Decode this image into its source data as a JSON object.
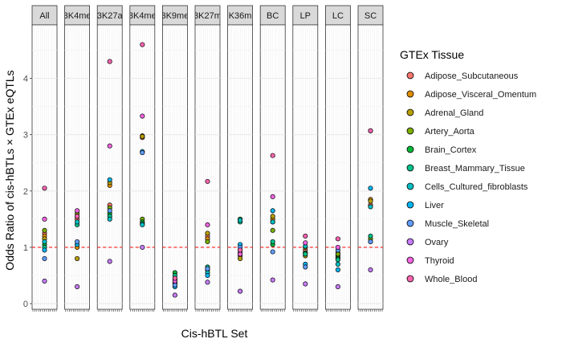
{
  "chart_data": {
    "type": "scatter",
    "facets": [
      "All",
      "3K4me",
      "3K27a",
      "3K4me",
      "3K9me",
      "3K27m",
      "K36m",
      "BC",
      "LP",
      "LC",
      "SC"
    ],
    "xlabel": "Cis-hBTL Set",
    "ylabel": "Odds Ratio of cis-hBTLs × GTEx eQTLs",
    "ylim": [
      -0.1,
      4.95
    ],
    "yticks": [
      0,
      1,
      2,
      3,
      4
    ],
    "reference_line": {
      "y": 1,
      "color": "#ff0000",
      "style": "dashed"
    },
    "grid": true,
    "legend": {
      "title": "GTEx Tissue",
      "position": "right",
      "items": [
        {
          "label": "Adipose_Subcutaneous",
          "color": "#f8766d"
        },
        {
          "label": "Adipose_Visceral_Omentum",
          "color": "#de8c00"
        },
        {
          "label": "Adrenal_Gland",
          "color": "#b79f00"
        },
        {
          "label": "Artery_Aorta",
          "color": "#7cae00"
        },
        {
          "label": "Brain_Cortex",
          "color": "#00ba38"
        },
        {
          "label": "Breast_Mammary_Tissue",
          "color": "#00c08b"
        },
        {
          "label": "Cells_Cultured_fibroblasts",
          "color": "#00bfc4"
        },
        {
          "label": "Liver",
          "color": "#00b4f0"
        },
        {
          "label": "Muscle_Skeletal",
          "color": "#619cff"
        },
        {
          "label": "Ovary",
          "color": "#c77cff"
        },
        {
          "label": "Thyroid",
          "color": "#f564e3"
        },
        {
          "label": "Whole_Blood",
          "color": "#ff64b0"
        }
      ]
    },
    "points": [
      {
        "facet": 0,
        "values": [
          1.25,
          1.2,
          1.15,
          1.3,
          1.05,
          1.0,
          1.1,
          0.95,
          0.8,
          0.4,
          1.5,
          2.05
        ]
      },
      {
        "facet": 1,
        "values": [
          1.5,
          1.0,
          0.8,
          1.6,
          1.55,
          1.4,
          1.45,
          1.05,
          1.1,
          0.3,
          1.65,
          1.55
        ]
      },
      {
        "facet": 2,
        "values": [
          1.75,
          2.1,
          2.15,
          1.7,
          1.6,
          1.55,
          1.5,
          2.2,
          1.65,
          0.75,
          2.8,
          4.3
        ]
      },
      {
        "facet": 3,
        "values": [
          2.95,
          2.98,
          2.97,
          1.5,
          1.45,
          1.42,
          1.4,
          2.7,
          2.68,
          1.0,
          3.33,
          4.6
        ]
      },
      {
        "facet": 4,
        "values": [
          0.45,
          0.4,
          0.42,
          0.35,
          0.55,
          0.5,
          0.38,
          0.3,
          0.33,
          0.15,
          0.4,
          0.45
        ]
      },
      {
        "facet": 5,
        "values": [
          1.2,
          1.15,
          1.25,
          1.1,
          0.6,
          0.65,
          0.55,
          0.5,
          0.62,
          0.38,
          1.4,
          2.17
        ]
      },
      {
        "facet": 6,
        "values": [
          0.85,
          0.9,
          0.8,
          0.95,
          1.5,
          1.45,
          1.48,
          1.05,
          1.0,
          0.22,
          0.88,
          0.95
        ]
      },
      {
        "facet": 7,
        "values": [
          1.45,
          1.5,
          1.55,
          1.3,
          1.05,
          1.1,
          1.45,
          1.65,
          0.92,
          0.42,
          1.9,
          2.63
        ]
      },
      {
        "facet": 8,
        "values": [
          0.95,
          0.9,
          0.85,
          1.0,
          0.9,
          0.88,
          1.02,
          0.7,
          0.65,
          0.35,
          1.08,
          1.2
        ]
      },
      {
        "facet": 9,
        "values": [
          0.9,
          0.85,
          0.82,
          0.88,
          0.8,
          0.78,
          0.7,
          0.6,
          0.95,
          0.3,
          1.0,
          1.15
        ]
      },
      {
        "facet": 10,
        "values": [
          1.75,
          1.85,
          1.82,
          1.15,
          1.1,
          1.2,
          1.72,
          2.05,
          1.1,
          0.6,
          3.07,
          3.07
        ]
      }
    ]
  }
}
